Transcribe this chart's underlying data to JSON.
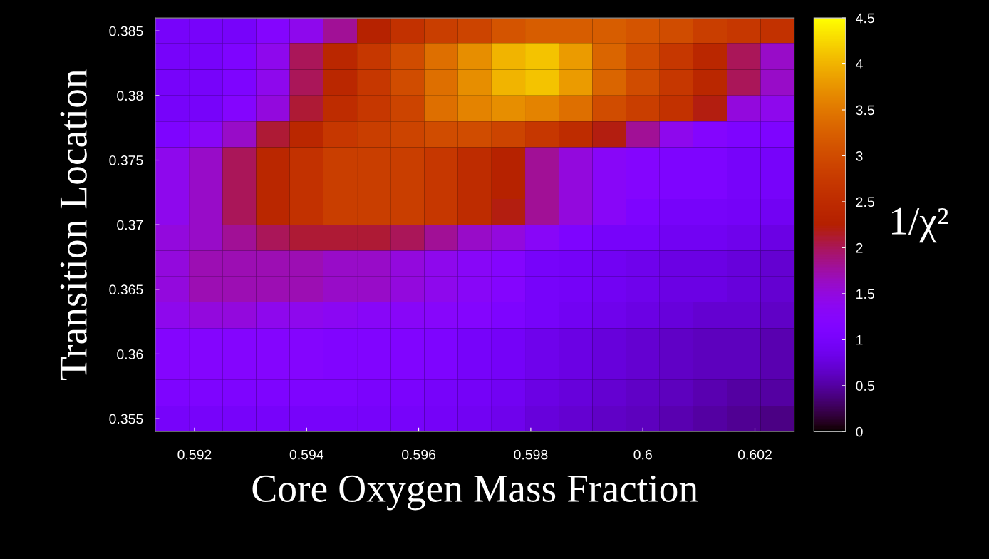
{
  "chart_data": {
    "type": "heatmap",
    "xlabel": "Core Oxygen Mass Fraction",
    "ylabel": "Transition Location",
    "clabel": "1/χ²",
    "x": [
      0.5916,
      0.5922,
      0.5928,
      0.5934,
      0.594,
      0.5946,
      0.5952,
      0.5958,
      0.5964,
      0.597,
      0.5976,
      0.5982,
      0.5988,
      0.5994,
      0.6,
      0.6006,
      0.6012,
      0.6018,
      0.6024
    ],
    "y": [
      0.385,
      0.383,
      0.381,
      0.379,
      0.377,
      0.375,
      0.373,
      0.371,
      0.369,
      0.367,
      0.365,
      0.363,
      0.361,
      0.359,
      0.357,
      0.355
    ],
    "cells": [
      [
        1.0,
        1.0,
        1.0,
        1.2,
        1.4,
        1.8,
        2.3,
        2.6,
        2.8,
        2.9,
        3.1,
        3.2,
        3.2,
        3.2,
        3.1,
        3.0,
        2.8,
        2.7,
        2.6
      ],
      [
        1.0,
        1.0,
        1.1,
        1.4,
        2.0,
        2.4,
        2.7,
        3.0,
        3.4,
        3.7,
        4.0,
        4.1,
        3.8,
        3.3,
        3.0,
        2.7,
        2.4,
        2.0,
        1.6
      ],
      [
        1.0,
        1.0,
        1.1,
        1.4,
        2.0,
        2.4,
        2.7,
        3.0,
        3.4,
        3.7,
        4.0,
        4.1,
        3.8,
        3.3,
        3.0,
        2.7,
        2.4,
        2.0,
        1.6
      ],
      [
        1.0,
        1.0,
        1.2,
        1.5,
        2.1,
        2.5,
        2.7,
        2.9,
        3.4,
        3.6,
        3.7,
        3.6,
        3.4,
        3.0,
        2.8,
        2.6,
        2.2,
        1.5,
        1.4
      ],
      [
        1.1,
        1.3,
        1.6,
        2.1,
        2.4,
        2.7,
        2.8,
        2.9,
        3.0,
        3.0,
        2.9,
        2.7,
        2.5,
        2.2,
        1.8,
        1.4,
        1.2,
        1.1,
        1.1
      ],
      [
        1.4,
        1.6,
        2.0,
        2.4,
        2.6,
        2.8,
        2.8,
        2.8,
        2.7,
        2.5,
        2.3,
        1.8,
        1.5,
        1.3,
        1.2,
        1.1,
        1.1,
        1.0,
        1.0
      ],
      [
        1.4,
        1.6,
        2.0,
        2.4,
        2.6,
        2.8,
        2.8,
        2.8,
        2.7,
        2.5,
        2.3,
        1.8,
        1.5,
        1.3,
        1.2,
        1.1,
        1.1,
        1.0,
        1.0
      ],
      [
        1.4,
        1.6,
        2.0,
        2.4,
        2.6,
        2.8,
        2.8,
        2.8,
        2.7,
        2.5,
        2.2,
        1.8,
        1.5,
        1.3,
        1.1,
        1.0,
        1.0,
        0.95,
        0.9
      ],
      [
        1.5,
        1.6,
        1.8,
        2.0,
        2.1,
        2.1,
        2.1,
        2.0,
        1.8,
        1.6,
        1.5,
        1.3,
        1.1,
        1.0,
        1.0,
        0.9,
        0.9,
        0.85,
        0.8
      ],
      [
        1.5,
        1.7,
        1.7,
        1.7,
        1.7,
        1.6,
        1.6,
        1.5,
        1.4,
        1.3,
        1.2,
        1.0,
        0.95,
        0.9,
        0.85,
        0.8,
        0.8,
        0.75,
        0.7
      ],
      [
        1.5,
        1.7,
        1.7,
        1.7,
        1.7,
        1.6,
        1.6,
        1.5,
        1.4,
        1.3,
        1.2,
        1.0,
        0.95,
        0.9,
        0.85,
        0.8,
        0.8,
        0.75,
        0.7
      ],
      [
        1.4,
        1.5,
        1.5,
        1.4,
        1.4,
        1.35,
        1.3,
        1.3,
        1.25,
        1.2,
        1.1,
        1.0,
        0.9,
        0.85,
        0.8,
        0.75,
        0.7,
        0.7,
        0.65
      ],
      [
        1.2,
        1.2,
        1.2,
        1.2,
        1.2,
        1.15,
        1.15,
        1.15,
        1.1,
        1.0,
        0.95,
        0.85,
        0.8,
        0.75,
        0.7,
        0.65,
        0.6,
        0.6,
        0.55
      ],
      [
        1.2,
        1.2,
        1.2,
        1.2,
        1.2,
        1.15,
        1.15,
        1.15,
        1.1,
        1.0,
        0.95,
        0.85,
        0.8,
        0.75,
        0.7,
        0.65,
        0.6,
        0.6,
        0.55
      ],
      [
        1.1,
        1.1,
        1.1,
        1.1,
        1.1,
        1.1,
        1.05,
        1.05,
        1.0,
        0.95,
        0.9,
        0.8,
        0.75,
        0.7,
        0.65,
        0.6,
        0.55,
        0.5,
        0.5
      ],
      [
        1.0,
        1.0,
        1.0,
        1.0,
        1.0,
        1.0,
        1.0,
        1.0,
        0.95,
        0.9,
        0.85,
        0.75,
        0.7,
        0.65,
        0.6,
        0.55,
        0.5,
        0.45,
        0.4
      ]
    ],
    "xlim": [
      0.5913,
      0.6027
    ],
    "ylim": [
      0.354,
      0.386
    ],
    "xticks": [
      0.592,
      0.594,
      0.596,
      0.598,
      0.6,
      0.602
    ],
    "yticks": [
      0.355,
      0.36,
      0.365,
      0.37,
      0.375,
      0.38,
      0.385
    ],
    "clim": [
      0,
      4.5
    ],
    "cticks": [
      0,
      0.5,
      1,
      1.5,
      2,
      2.5,
      3,
      3.5,
      4,
      4.5
    ]
  }
}
